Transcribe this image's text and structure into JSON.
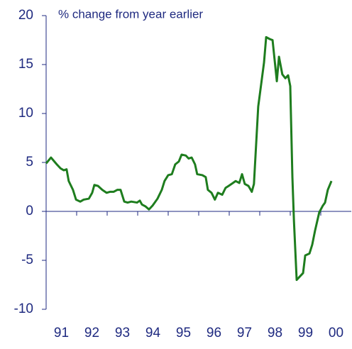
{
  "chart_data": {
    "type": "line",
    "title": "% change from year earlier",
    "xlim": [
      1991,
      2001
    ],
    "ylim": [
      -10,
      20
    ],
    "yticks": [
      -10,
      -5,
      0,
      5,
      10,
      15,
      20
    ],
    "xticks": [
      {
        "value": 1991.5,
        "label": "91"
      },
      {
        "value": 1992.5,
        "label": "92"
      },
      {
        "value": 1993.5,
        "label": "93"
      },
      {
        "value": 1994.5,
        "label": "94"
      },
      {
        "value": 1995.5,
        "label": "95"
      },
      {
        "value": 1996.5,
        "label": "96"
      },
      {
        "value": 1997.5,
        "label": "97"
      },
      {
        "value": 1998.5,
        "label": "98"
      },
      {
        "value": 1999.5,
        "label": "99"
      },
      {
        "value": 2000.5,
        "label": "00"
      }
    ],
    "xminor_ticks": [
      1992,
      1993,
      1994,
      1995,
      1996,
      1997,
      1998,
      1999,
      2000
    ],
    "series": [
      {
        "color": "#1e7d1e",
        "x": [
          1991.0,
          1991.16,
          1991.35,
          1991.47,
          1991.58,
          1991.67,
          1991.74,
          1991.88,
          1991.98,
          1992.12,
          1992.23,
          1992.4,
          1992.51,
          1992.58,
          1992.7,
          1992.84,
          1992.98,
          1993.09,
          1993.21,
          1993.33,
          1993.44,
          1993.56,
          1993.67,
          1993.79,
          1993.98,
          1994.07,
          1994.14,
          1994.26,
          1994.37,
          1994.49,
          1994.65,
          1994.79,
          1994.88,
          1995.0,
          1995.12,
          1995.23,
          1995.35,
          1995.44,
          1995.58,
          1995.67,
          1995.77,
          1995.88,
          1995.95,
          1996.12,
          1996.23,
          1996.3,
          1996.42,
          1996.53,
          1996.63,
          1996.77,
          1996.88,
          1996.98,
          1997.12,
          1997.21,
          1997.33,
          1997.42,
          1997.51,
          1997.63,
          1997.74,
          1997.81,
          1997.95,
          1998.14,
          1998.21,
          1998.33,
          1998.42,
          1998.49,
          1998.56,
          1998.63,
          1998.74,
          1998.84,
          1998.93,
          1999.0,
          1999.07,
          1999.12,
          1999.21,
          1999.3,
          1999.42,
          1999.49,
          1999.63,
          1999.72,
          1999.81,
          1999.95,
          2000.07,
          2000.14,
          2000.23,
          2000.35
        ],
        "values": [
          4.9,
          5.5,
          4.8,
          4.4,
          4.2,
          4.3,
          3.1,
          2.2,
          1.2,
          1.0,
          1.2,
          1.3,
          1.9,
          2.7,
          2.6,
          2.2,
          1.9,
          2.0,
          2.0,
          2.2,
          2.2,
          1.0,
          0.9,
          1.0,
          0.9,
          1.1,
          0.7,
          0.5,
          0.2,
          0.6,
          1.3,
          2.2,
          3.1,
          3.7,
          3.8,
          4.8,
          5.1,
          5.8,
          5.7,
          5.4,
          5.5,
          4.8,
          3.8,
          3.7,
          3.5,
          2.2,
          1.9,
          1.2,
          1.9,
          1.7,
          2.4,
          2.6,
          2.9,
          3.1,
          2.9,
          3.8,
          2.8,
          2.6,
          2.0,
          2.8,
          10.7,
          15.2,
          17.8,
          17.6,
          17.5,
          15.4,
          13.3,
          15.8,
          14.0,
          13.6,
          13.9,
          12.8,
          3.5,
          -0.9,
          -7.0,
          -6.7,
          -6.3,
          -4.5,
          -4.3,
          -3.4,
          -2.0,
          -0.1,
          0.6,
          0.9,
          2.2,
          3.1
        ]
      }
    ]
  }
}
